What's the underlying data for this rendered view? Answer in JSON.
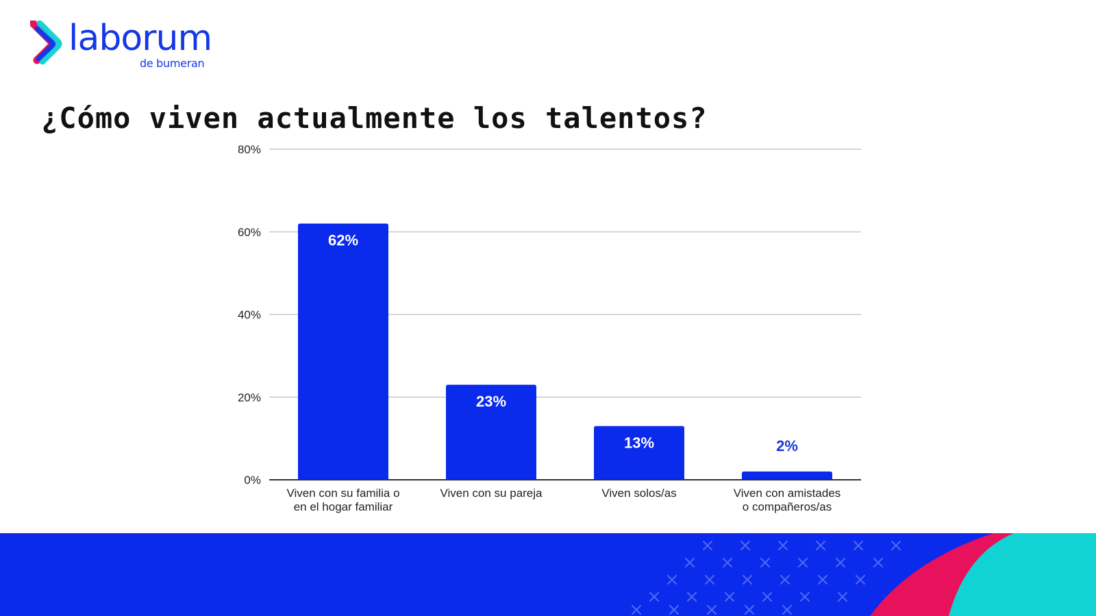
{
  "brand": {
    "name": "laborum",
    "sub": "de bumeran",
    "logo_icon": "chevron-logo-icon"
  },
  "page_title": "¿Cómo viven actualmente los talentos?",
  "colors": {
    "bar": "#0a2aec",
    "grid": "#c8c8c8",
    "axis": "#333333",
    "label_inside": "#ffffff",
    "label_outside": "#1a35d8",
    "footer_blue": "#0a2aec",
    "footer_magenta": "#e8115b",
    "footer_cyan": "#11d3d3",
    "logo_magenta": "#e8115b",
    "logo_cyan": "#10cfd6",
    "logo_blue": "#1637e6"
  },
  "chart_data": {
    "type": "bar",
    "title": "¿Cómo viven actualmente los talentos?",
    "categories": [
      [
        "Viven con su familia o",
        "en el hogar familiar"
      ],
      [
        "Viven con su pareja"
      ],
      [
        "Viven solos/as"
      ],
      [
        "Viven con amistades",
        "o compañeros/as"
      ]
    ],
    "values": [
      62,
      23,
      13,
      2
    ],
    "data_labels": [
      "62%",
      "23%",
      "13%",
      "2%"
    ],
    "ylim": [
      0,
      80
    ],
    "yticks": [
      0,
      20,
      40,
      60,
      80
    ],
    "ytick_labels": [
      "0%",
      "20%",
      "40%",
      "60%",
      "80%"
    ],
    "xlabel": "",
    "ylabel": "",
    "grid": true,
    "legend": "none"
  }
}
